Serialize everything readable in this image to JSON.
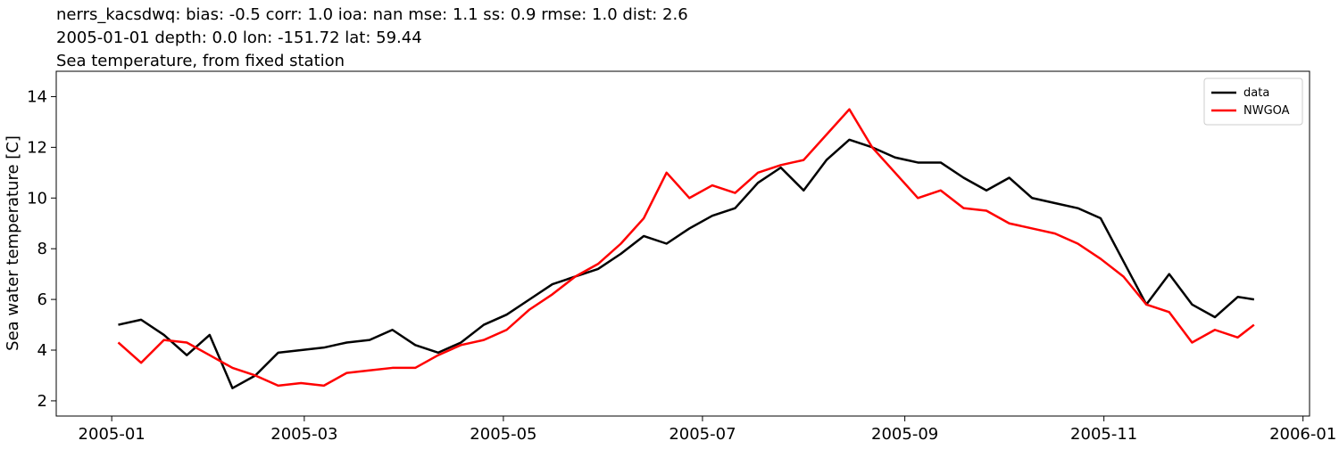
{
  "chart_data": {
    "type": "line",
    "title_lines": [
      "nerrs_kacsdwq: bias: -0.5  corr: 1.0  ioa: nan  mse: 1.1  ss: 0.9  rmse: 1.0  dist: 2.6",
      "2005-01-01 depth: 0.0 lon: -151.72 lat: 59.44",
      "Sea temperature, from fixed station"
    ],
    "ylabel": "Sea water temperature [C]",
    "x": [
      "2005-01-03",
      "2005-01-10",
      "2005-01-17",
      "2005-01-24",
      "2005-01-31",
      "2005-02-07",
      "2005-02-14",
      "2005-02-21",
      "2005-02-28",
      "2005-03-07",
      "2005-03-14",
      "2005-03-21",
      "2005-03-28",
      "2005-04-04",
      "2005-04-11",
      "2005-04-18",
      "2005-04-25",
      "2005-05-02",
      "2005-05-09",
      "2005-05-16",
      "2005-05-23",
      "2005-05-30",
      "2005-06-06",
      "2005-06-13",
      "2005-06-20",
      "2005-06-27",
      "2005-07-04",
      "2005-07-11",
      "2005-07-18",
      "2005-07-25",
      "2005-08-01",
      "2005-08-08",
      "2005-08-15",
      "2005-08-22",
      "2005-08-29",
      "2005-09-05",
      "2005-09-12",
      "2005-09-19",
      "2005-09-26",
      "2005-10-03",
      "2005-10-10",
      "2005-10-17",
      "2005-10-24",
      "2005-10-31",
      "2005-11-07",
      "2005-11-14",
      "2005-11-21",
      "2005-11-28",
      "2005-12-05",
      "2005-12-12",
      "2005-12-17"
    ],
    "series": [
      {
        "name": "data",
        "color": "#000000",
        "values": [
          5.0,
          5.2,
          4.6,
          3.8,
          4.6,
          2.5,
          3.0,
          3.9,
          4.0,
          4.1,
          4.3,
          4.4,
          4.8,
          4.2,
          3.9,
          4.3,
          5.0,
          5.4,
          6.0,
          6.6,
          6.9,
          7.2,
          7.8,
          8.5,
          8.2,
          8.8,
          9.3,
          9.6,
          10.6,
          11.2,
          10.3,
          11.5,
          12.3,
          12.0,
          11.6,
          11.4,
          11.4,
          10.8,
          10.3,
          10.8,
          10.0,
          9.8,
          9.6,
          9.2,
          7.5,
          5.8,
          7.0,
          5.8,
          5.3,
          6.1,
          6.0
        ]
      },
      {
        "name": "NWGOA",
        "color": "#ff0000",
        "values": [
          4.3,
          3.5,
          4.4,
          4.3,
          3.8,
          3.3,
          3.0,
          2.6,
          2.7,
          2.6,
          3.1,
          3.2,
          3.3,
          3.3,
          3.8,
          4.2,
          4.4,
          4.8,
          5.6,
          6.2,
          6.9,
          7.4,
          8.2,
          9.2,
          11.0,
          10.0,
          10.5,
          10.2,
          11.0,
          11.3,
          11.5,
          12.5,
          13.5,
          12.0,
          11.0,
          10.0,
          10.3,
          9.6,
          9.5,
          9.0,
          8.8,
          8.6,
          8.2,
          7.6,
          6.9,
          5.8,
          5.5,
          4.3,
          4.8,
          4.5,
          5.0
        ]
      }
    ],
    "xlim": [
      "2004-12-15",
      "2006-01-03"
    ],
    "xticks": [
      "2005-01",
      "2005-03",
      "2005-05",
      "2005-07",
      "2005-09",
      "2005-11",
      "2006-01"
    ],
    "ylim": [
      1.4,
      15.0
    ],
    "yticks": [
      2,
      4,
      6,
      8,
      10,
      12,
      14
    ],
    "grid": false,
    "legend_loc": "upper-right"
  }
}
